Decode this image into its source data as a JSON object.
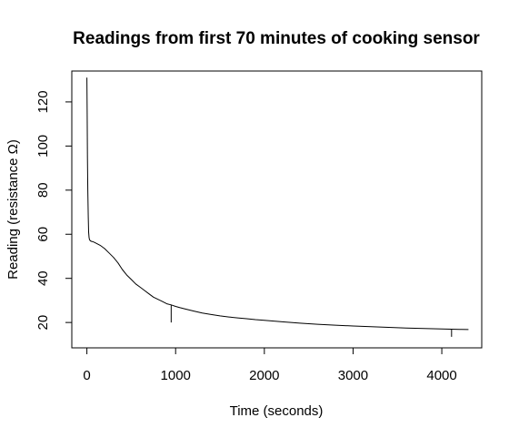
{
  "chart_data": {
    "type": "line",
    "title": "Readings from first 70 minutes of cooking sensor",
    "xlabel": "Time (seconds)",
    "ylabel": "Reading (resistance Ω)",
    "xlim": [
      -170,
      4450
    ],
    "ylim": [
      8.5,
      134
    ],
    "xticks": [
      0,
      1000,
      2000,
      3000,
      4000
    ],
    "xtick_labels": [
      "0",
      "1000",
      "2000",
      "3000",
      "4000"
    ],
    "yticks": [
      20,
      40,
      60,
      80,
      100,
      120
    ],
    "ytick_labels": [
      "20",
      "40",
      "60",
      "80",
      "100",
      "120"
    ],
    "grid": false,
    "legend": "none",
    "line_color": "#000000",
    "series": [
      {
        "x": [
          0,
          3,
          6,
          10,
          15,
          20,
          25,
          30,
          40,
          50,
          75,
          100,
          150,
          200,
          250,
          300,
          350,
          400,
          450,
          500,
          550,
          600,
          650,
          700,
          750,
          800,
          850,
          900,
          950,
          1000,
          1050,
          1100,
          1200,
          1300,
          1400,
          1500,
          1600,
          1700,
          1800,
          1900,
          2000,
          2200,
          2400,
          2600,
          2800,
          3000,
          3200,
          3400,
          3600,
          3800,
          4000,
          4200,
          4300
        ],
        "y": [
          131,
          115,
          95,
          80,
          68,
          61,
          58.5,
          57.5,
          57,
          56.8,
          56.5,
          56,
          55,
          53.5,
          51.5,
          49.5,
          47,
          44,
          41.5,
          39.5,
          37.5,
          36,
          34.5,
          33,
          31.5,
          30.5,
          29.5,
          28.5,
          28,
          27.3,
          26.7,
          26.2,
          25.2,
          24.3,
          23.6,
          23,
          22.5,
          22.1,
          21.7,
          21.3,
          21,
          20.3,
          19.7,
          19.2,
          18.8,
          18.4,
          18.1,
          17.8,
          17.5,
          17.3,
          17.1,
          16.9,
          16.8
        ]
      }
    ],
    "outliers": [
      {
        "x": 950,
        "y": 20
      },
      {
        "x": 4110,
        "y": 13.5
      }
    ]
  }
}
